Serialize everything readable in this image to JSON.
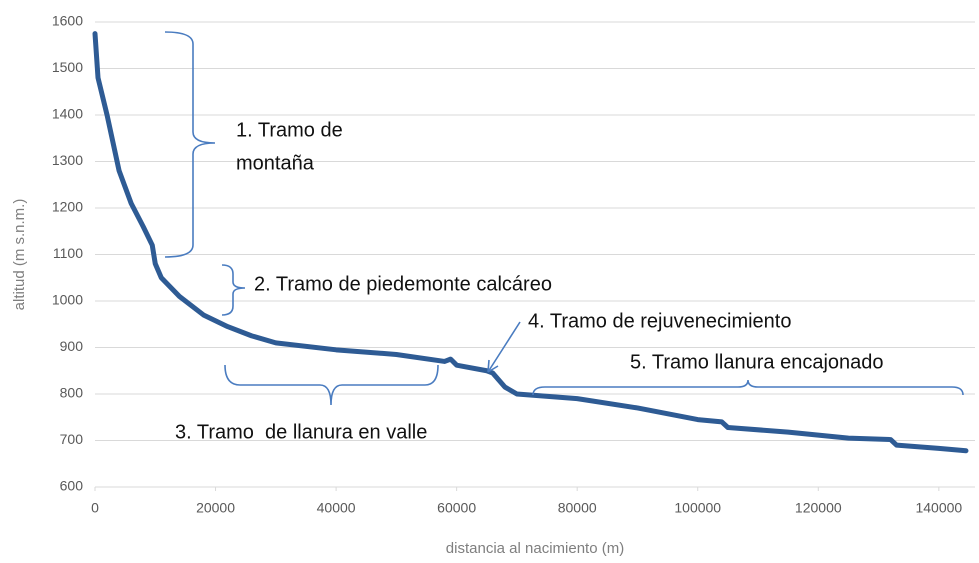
{
  "chart_data": {
    "type": "line",
    "x_label": "distancia al nacimiento (m)",
    "y_label": "altitud (m s.n.m.)",
    "xlim": [
      0,
      146000
    ],
    "xticks": [
      0,
      20000,
      40000,
      60000,
      80000,
      100000,
      120000,
      140000
    ],
    "ylim": [
      600,
      1600
    ],
    "yticks": [
      600,
      700,
      800,
      900,
      1000,
      1100,
      1200,
      1300,
      1400,
      1500,
      1600
    ],
    "grid": true,
    "annotations": [
      "1. Tramo de",
      "montaña",
      "2. Tramo de piedemonte calcáreo",
      "4. Tramo de rejuvenecimiento",
      "5. Tramo llanura encajonado",
      "3. Tramo  de llanura en valle"
    ],
    "series": [
      {
        "color": "#2e5b94",
        "x": [
          0,
          500,
          2000,
          4000,
          6000,
          8000,
          9500,
          10000,
          11000,
          14000,
          18000,
          22000,
          26000,
          30000,
          40000,
          50000,
          58000,
          59000,
          60000,
          65000,
          66000,
          68000,
          70000,
          80000,
          90000,
          100000,
          104000,
          105000,
          115000,
          125000,
          132000,
          133000,
          140000,
          144500
        ],
        "values": [
          1575,
          1480,
          1400,
          1280,
          1210,
          1160,
          1120,
          1080,
          1050,
          1010,
          970,
          945,
          925,
          910,
          895,
          885,
          870,
          875,
          862,
          850,
          845,
          815,
          800,
          790,
          770,
          745,
          740,
          728,
          718,
          705,
          702,
          690,
          683,
          678
        ]
      }
    ]
  }
}
